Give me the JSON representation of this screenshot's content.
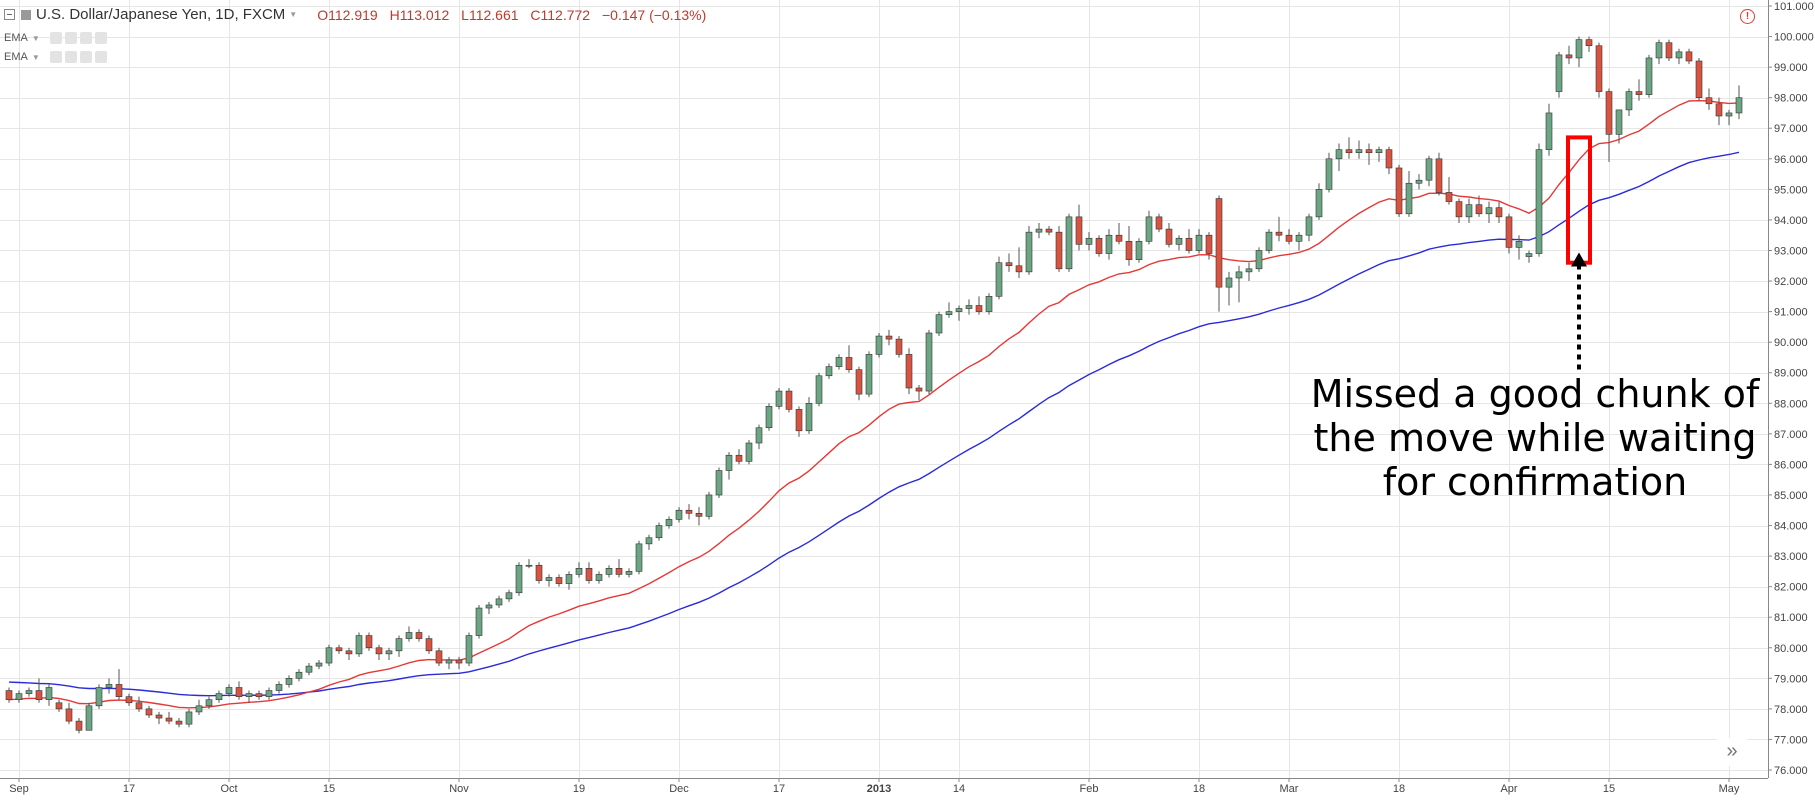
{
  "header": {
    "symbol": "U.S. Dollar/Japanese Yen, 1D, FXCM",
    "open": "O112.919",
    "high": "H113.012",
    "low": "L112.661",
    "close": "C112.772",
    "change": "−0.147 (−0.13%)"
  },
  "indicators": [
    {
      "label": "EMA",
      "color": "#e53935"
    },
    {
      "label": "EMA",
      "color": "#2b2bd9"
    }
  ],
  "annotation": {
    "lines": [
      "Missed a good chunk of",
      "the move while waiting",
      "for confirmation"
    ]
  },
  "colors": {
    "up_candle": "#6ba583",
    "down_candle": "#d75442",
    "grid": "#e6e6e6",
    "fast_ema": "#e53935",
    "slow_ema": "#2b2bd9",
    "highlight": "#ff0000"
  },
  "chart_data": {
    "type": "candlestick",
    "y_axis": {
      "range": [
        76.0,
        101.0
      ],
      "ticks": [
        "76.000",
        "77.000",
        "78.000",
        "79.000",
        "80.000",
        "81.000",
        "82.000",
        "83.000",
        "84.000",
        "85.000",
        "86.000",
        "87.000",
        "88.000",
        "89.000",
        "90.000",
        "91.000",
        "92.000",
        "93.000",
        "94.000",
        "95.000",
        "96.000",
        "97.000",
        "98.000",
        "99.000",
        "100.000",
        "101.000"
      ]
    },
    "x_axis": {
      "labels": [
        {
          "t": "Sep",
          "bar": 1
        },
        {
          "t": "17",
          "bar": 12
        },
        {
          "t": "Oct",
          "bar": 22
        },
        {
          "t": "15",
          "bar": 32
        },
        {
          "t": "Nov",
          "bar": 45
        },
        {
          "t": "19",
          "bar": 57
        },
        {
          "t": "Dec",
          "bar": 67
        },
        {
          "t": "17",
          "bar": 77
        },
        {
          "t": "2013",
          "bar": 87,
          "bold": true
        },
        {
          "t": "14",
          "bar": 95
        },
        {
          "t": "Feb",
          "bar": 108
        },
        {
          "t": "18",
          "bar": 119
        },
        {
          "t": "Mar",
          "bar": 128
        },
        {
          "t": "18",
          "bar": 139
        },
        {
          "t": "Apr",
          "bar": 150
        },
        {
          "t": "15",
          "bar": 160
        },
        {
          "t": "May",
          "bar": 172
        }
      ]
    },
    "ohlc": [
      [
        78.6,
        78.7,
        78.2,
        78.3
      ],
      [
        78.3,
        78.6,
        78.2,
        78.5
      ],
      [
        78.5,
        78.7,
        78.4,
        78.6
      ],
      [
        78.6,
        79.0,
        78.2,
        78.3
      ],
      [
        78.3,
        78.8,
        78.1,
        78.7
      ],
      [
        78.2,
        78.3,
        77.9,
        78.0
      ],
      [
        78.0,
        78.2,
        77.5,
        77.6
      ],
      [
        77.6,
        77.7,
        77.2,
        77.3
      ],
      [
        77.3,
        78.2,
        77.3,
        78.1
      ],
      [
        78.1,
        78.8,
        78.0,
        78.7
      ],
      [
        78.7,
        79.0,
        78.5,
        78.8
      ],
      [
        78.8,
        79.3,
        78.3,
        78.4
      ],
      [
        78.4,
        78.5,
        78.1,
        78.2
      ],
      [
        78.2,
        78.4,
        77.9,
        78.0
      ],
      [
        78.0,
        78.1,
        77.7,
        77.8
      ],
      [
        77.8,
        77.9,
        77.5,
        77.7
      ],
      [
        77.7,
        77.9,
        77.5,
        77.6
      ],
      [
        77.6,
        77.7,
        77.4,
        77.5
      ],
      [
        77.5,
        78.0,
        77.4,
        77.9
      ],
      [
        77.9,
        78.3,
        77.8,
        78.1
      ],
      [
        78.1,
        78.4,
        78.0,
        78.3
      ],
      [
        78.3,
        78.6,
        78.2,
        78.5
      ],
      [
        78.5,
        78.8,
        78.4,
        78.7
      ],
      [
        78.7,
        78.9,
        78.3,
        78.4
      ],
      [
        78.4,
        78.6,
        78.2,
        78.5
      ],
      [
        78.5,
        78.6,
        78.3,
        78.4
      ],
      [
        78.4,
        78.7,
        78.3,
        78.6
      ],
      [
        78.6,
        78.9,
        78.5,
        78.8
      ],
      [
        78.8,
        79.1,
        78.7,
        79.0
      ],
      [
        79.0,
        79.3,
        78.9,
        79.2
      ],
      [
        79.2,
        79.5,
        79.1,
        79.4
      ],
      [
        79.4,
        79.6,
        79.3,
        79.5
      ],
      [
        79.5,
        80.1,
        79.4,
        80.0
      ],
      [
        80.0,
        80.1,
        79.8,
        79.9
      ],
      [
        79.9,
        80.0,
        79.6,
        79.8
      ],
      [
        79.8,
        80.5,
        79.7,
        80.4
      ],
      [
        80.4,
        80.5,
        79.9,
        80.0
      ],
      [
        80.0,
        80.1,
        79.6,
        79.8
      ],
      [
        79.8,
        80.0,
        79.6,
        79.9
      ],
      [
        79.9,
        80.4,
        79.7,
        80.3
      ],
      [
        80.3,
        80.7,
        80.2,
        80.5
      ],
      [
        80.5,
        80.6,
        80.2,
        80.3
      ],
      [
        80.3,
        80.4,
        79.8,
        79.9
      ],
      [
        79.9,
        80.0,
        79.4,
        79.5
      ],
      [
        79.5,
        79.7,
        79.3,
        79.6
      ],
      [
        79.6,
        79.7,
        79.3,
        79.5
      ],
      [
        79.5,
        80.5,
        79.4,
        80.4
      ],
      [
        80.4,
        81.4,
        80.3,
        81.3
      ],
      [
        81.3,
        81.5,
        81.1,
        81.4
      ],
      [
        81.4,
        81.7,
        81.3,
        81.6
      ],
      [
        81.6,
        81.9,
        81.5,
        81.8
      ],
      [
        81.8,
        82.8,
        81.7,
        82.7
      ],
      [
        82.7,
        82.9,
        82.6,
        82.7
      ],
      [
        82.7,
        82.8,
        82.1,
        82.2
      ],
      [
        82.2,
        82.4,
        82.0,
        82.3
      ],
      [
        82.3,
        82.4,
        82.0,
        82.1
      ],
      [
        82.1,
        82.5,
        81.9,
        82.4
      ],
      [
        82.4,
        82.8,
        82.3,
        82.6
      ],
      [
        82.6,
        82.8,
        82.1,
        82.2
      ],
      [
        82.2,
        82.5,
        82.1,
        82.4
      ],
      [
        82.4,
        82.7,
        82.3,
        82.6
      ],
      [
        82.6,
        82.9,
        82.3,
        82.4
      ],
      [
        82.4,
        82.6,
        82.3,
        82.5
      ],
      [
        82.5,
        83.5,
        82.4,
        83.4
      ],
      [
        83.4,
        83.7,
        83.2,
        83.6
      ],
      [
        83.6,
        84.1,
        83.5,
        84.0
      ],
      [
        84.0,
        84.3,
        83.9,
        84.2
      ],
      [
        84.2,
        84.6,
        84.1,
        84.5
      ],
      [
        84.5,
        84.7,
        84.2,
        84.4
      ],
      [
        84.4,
        84.6,
        84.0,
        84.3
      ],
      [
        84.3,
        85.1,
        84.2,
        85.0
      ],
      [
        85.0,
        85.9,
        84.9,
        85.8
      ],
      [
        85.8,
        86.4,
        85.5,
        86.3
      ],
      [
        86.3,
        86.5,
        86.0,
        86.1
      ],
      [
        86.1,
        86.8,
        86.0,
        86.7
      ],
      [
        86.7,
        87.3,
        86.5,
        87.2
      ],
      [
        87.2,
        88.0,
        87.1,
        87.9
      ],
      [
        87.9,
        88.5,
        87.8,
        88.4
      ],
      [
        88.4,
        88.5,
        87.7,
        87.8
      ],
      [
        87.8,
        87.9,
        86.9,
        87.1
      ],
      [
        87.1,
        88.2,
        87.0,
        88.0
      ],
      [
        88.0,
        89.0,
        87.9,
        88.9
      ],
      [
        88.9,
        89.3,
        88.8,
        89.2
      ],
      [
        89.2,
        89.6,
        89.1,
        89.5
      ],
      [
        89.5,
        89.9,
        89.0,
        89.1
      ],
      [
        89.1,
        89.2,
        88.1,
        88.3
      ],
      [
        88.3,
        89.7,
        88.2,
        89.6
      ],
      [
        89.6,
        90.3,
        89.5,
        90.2
      ],
      [
        90.2,
        90.4,
        89.9,
        90.1
      ],
      [
        90.1,
        90.2,
        89.5,
        89.6
      ],
      [
        89.6,
        89.8,
        88.3,
        88.5
      ],
      [
        88.5,
        88.6,
        88.1,
        88.4
      ],
      [
        88.4,
        90.4,
        88.3,
        90.3
      ],
      [
        90.3,
        91.0,
        90.2,
        90.9
      ],
      [
        90.9,
        91.3,
        90.8,
        91.0
      ],
      [
        91.0,
        91.2,
        90.7,
        91.1
      ],
      [
        91.1,
        91.4,
        90.9,
        91.2
      ],
      [
        91.2,
        91.5,
        90.9,
        91.0
      ],
      [
        91.0,
        91.6,
        90.9,
        91.5
      ],
      [
        91.5,
        92.8,
        91.4,
        92.6
      ],
      [
        92.6,
        92.9,
        92.3,
        92.5
      ],
      [
        92.5,
        93.1,
        92.1,
        92.3
      ],
      [
        92.3,
        93.8,
        92.2,
        93.6
      ],
      [
        93.6,
        93.9,
        93.4,
        93.7
      ],
      [
        93.7,
        93.8,
        93.5,
        93.6
      ],
      [
        93.6,
        93.8,
        92.3,
        92.4
      ],
      [
        92.4,
        94.2,
        92.3,
        94.1
      ],
      [
        94.1,
        94.5,
        93.0,
        93.2
      ],
      [
        93.2,
        93.6,
        93.0,
        93.4
      ],
      [
        93.4,
        93.5,
        92.8,
        92.9
      ],
      [
        92.9,
        93.7,
        92.7,
        93.5
      ],
      [
        93.5,
        93.9,
        93.2,
        93.3
      ],
      [
        93.3,
        93.8,
        92.5,
        92.7
      ],
      [
        92.7,
        93.4,
        92.6,
        93.3
      ],
      [
        93.3,
        94.3,
        93.2,
        94.1
      ],
      [
        94.1,
        94.2,
        93.6,
        93.7
      ],
      [
        93.7,
        93.9,
        93.1,
        93.2
      ],
      [
        93.2,
        93.5,
        93.0,
        93.4
      ],
      [
        93.4,
        93.7,
        92.9,
        93.0
      ],
      [
        93.0,
        93.7,
        92.9,
        93.5
      ],
      [
        93.5,
        93.6,
        92.7,
        92.9
      ],
      [
        94.7,
        94.8,
        91.0,
        91.8
      ],
      [
        91.8,
        92.3,
        91.2,
        92.1
      ],
      [
        92.1,
        92.5,
        91.3,
        92.3
      ],
      [
        92.3,
        92.6,
        92.0,
        92.4
      ],
      [
        92.4,
        93.1,
        92.3,
        93.0
      ],
      [
        93.0,
        93.7,
        92.9,
        93.6
      ],
      [
        93.6,
        94.1,
        93.3,
        93.5
      ],
      [
        93.5,
        93.7,
        93.2,
        93.3
      ],
      [
        93.3,
        93.6,
        93.0,
        93.5
      ],
      [
        93.5,
        94.2,
        93.3,
        94.1
      ],
      [
        94.1,
        95.2,
        94.0,
        95.0
      ],
      [
        95.0,
        96.2,
        94.9,
        96.0
      ],
      [
        96.0,
        96.5,
        95.6,
        96.3
      ],
      [
        96.3,
        96.7,
        96.0,
        96.2
      ],
      [
        96.2,
        96.6,
        96.0,
        96.3
      ],
      [
        96.3,
        96.5,
        95.8,
        96.2
      ],
      [
        96.2,
        96.4,
        95.9,
        96.3
      ],
      [
        96.3,
        96.4,
        95.5,
        95.7
      ],
      [
        95.7,
        95.8,
        94.1,
        94.2
      ],
      [
        94.2,
        95.6,
        94.1,
        95.2
      ],
      [
        95.2,
        95.5,
        95.0,
        95.3
      ],
      [
        95.3,
        96.1,
        95.1,
        96.0
      ],
      [
        96.0,
        96.2,
        94.8,
        94.9
      ],
      [
        94.9,
        95.4,
        94.5,
        94.6
      ],
      [
        94.6,
        94.7,
        93.9,
        94.1
      ],
      [
        94.1,
        94.7,
        93.9,
        94.5
      ],
      [
        94.5,
        94.8,
        94.1,
        94.2
      ],
      [
        94.2,
        94.6,
        93.9,
        94.4
      ],
      [
        94.4,
        94.6,
        93.9,
        94.1
      ],
      [
        94.1,
        94.2,
        92.9,
        93.1
      ],
      [
        93.1,
        93.5,
        92.7,
        93.3
      ],
      [
        92.8,
        93.0,
        92.6,
        92.9
      ],
      [
        92.9,
        96.5,
        92.8,
        96.3
      ],
      [
        96.3,
        97.8,
        96.1,
        97.5
      ],
      [
        98.2,
        99.5,
        98.0,
        99.4
      ],
      [
        99.4,
        99.7,
        99.1,
        99.3
      ],
      [
        99.3,
        100.0,
        99.0,
        99.9
      ],
      [
        99.9,
        100.0,
        99.5,
        99.7
      ],
      [
        99.7,
        99.8,
        98.0,
        98.2
      ],
      [
        98.2,
        98.3,
        95.9,
        96.8
      ],
      [
        96.8,
        97.6,
        96.5,
        97.6
      ],
      [
        97.6,
        98.3,
        97.4,
        98.2
      ],
      [
        98.2,
        98.6,
        97.9,
        98.1
      ],
      [
        98.1,
        99.4,
        98.0,
        99.3
      ],
      [
        99.3,
        99.9,
        99.1,
        99.8
      ],
      [
        99.8,
        99.9,
        99.2,
        99.3
      ],
      [
        99.3,
        99.6,
        99.1,
        99.5
      ],
      [
        99.5,
        99.6,
        99.1,
        99.2
      ],
      [
        99.2,
        99.3,
        97.9,
        98.0
      ],
      [
        98.0,
        98.3,
        97.6,
        97.8
      ],
      [
        97.8,
        98.0,
        97.1,
        97.4
      ],
      [
        97.4,
        97.6,
        97.1,
        97.5
      ],
      [
        97.5,
        98.4,
        97.3,
        98.0
      ]
    ],
    "ema_fast": {
      "period": 20,
      "color": "#e53935"
    },
    "ema_slow": {
      "period": 50,
      "color": "#2b2bd9",
      "seed": 78.9
    },
    "highlight_box": {
      "bar_from": 157,
      "bar_to": 157,
      "y_from": 92.6,
      "y_to": 96.7
    },
    "arrow": {
      "bar": 157,
      "y_top": 93.0,
      "y_bottom": 89.0
    }
  }
}
